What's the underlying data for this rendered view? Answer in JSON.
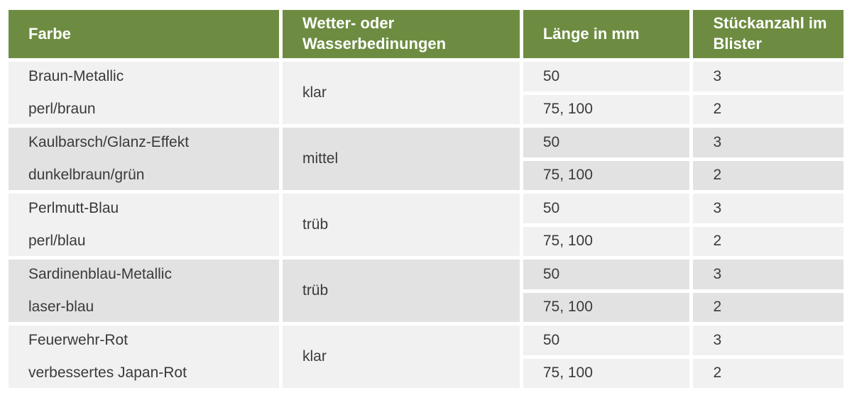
{
  "colors": {
    "header_bg": "#6d8c41",
    "header_text": "#ffffff",
    "row_light": "#f1f1f1",
    "row_dark": "#e2e2e2",
    "body_text": "#3a3a3a",
    "gap": "#ffffff"
  },
  "table": {
    "headers": {
      "farbe": "Farbe",
      "bedingung": "Wetter- oder Wasserbedinungen",
      "laenge": "Länge in mm",
      "stueck": "Stückanzahl im Blister"
    },
    "groups": [
      {
        "farbe_line1": "Braun-Metallic",
        "farbe_line2": "perl/braun",
        "bedingung": "klar",
        "laenge_1": "50",
        "stueck_1": "3",
        "laenge_2": "75, 100",
        "stueck_2": "2"
      },
      {
        "farbe_line1": "Kaulbarsch/Glanz-Effekt",
        "farbe_line2": "dunkelbraun/grün",
        "bedingung": "mittel",
        "laenge_1": "50",
        "stueck_1": "3",
        "laenge_2": "75, 100",
        "stueck_2": "2"
      },
      {
        "farbe_line1": "Perlmutt-Blau",
        "farbe_line2": "perl/blau",
        "bedingung": "trüb",
        "laenge_1": "50",
        "stueck_1": "3",
        "laenge_2": "75, 100",
        "stueck_2": "2"
      },
      {
        "farbe_line1": "Sardinenblau-Metallic",
        "farbe_line2": "laser-blau",
        "bedingung": "trüb",
        "laenge_1": "50",
        "stueck_1": "3",
        "laenge_2": "75, 100",
        "stueck_2": "2"
      },
      {
        "farbe_line1": "Feuerwehr-Rot",
        "farbe_line2": "verbessertes Japan-Rot",
        "bedingung": "klar",
        "laenge_1": "50",
        "stueck_1": "3",
        "laenge_2": "75, 100",
        "stueck_2": "2"
      }
    ]
  }
}
